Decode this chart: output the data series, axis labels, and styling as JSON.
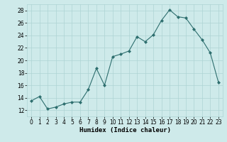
{
  "x_vals": [
    0,
    1,
    2,
    3,
    4,
    5,
    6,
    7,
    8,
    9,
    10,
    11,
    12,
    13,
    14,
    15,
    16,
    17,
    18,
    19,
    20,
    21,
    22,
    23
  ],
  "y_vals": [
    13.5,
    14.2,
    12.2,
    12.5,
    13.0,
    13.3,
    13.3,
    15.3,
    18.7,
    16.0,
    20.6,
    21.0,
    21.5,
    23.8,
    23.0,
    24.1,
    26.4,
    28.1,
    27.0,
    26.8,
    25.0,
    23.3,
    21.2,
    16.5
  ],
  "line_color": "#2d6e6e",
  "marker_color": "#2d6e6e",
  "bg_color": "#ceeaea",
  "grid_color": "#add4d4",
  "xlabel": "Humidex (Indice chaleur)",
  "ylim": [
    11,
    29
  ],
  "xlim": [
    -0.5,
    23.5
  ],
  "yticks": [
    12,
    14,
    16,
    18,
    20,
    22,
    24,
    26,
    28
  ],
  "xticks": [
    0,
    1,
    2,
    3,
    4,
    5,
    6,
    7,
    8,
    9,
    10,
    11,
    12,
    13,
    14,
    15,
    16,
    17,
    18,
    19,
    20,
    21,
    22,
    23
  ],
  "xlabel_fontsize": 6.5,
  "tick_fontsize": 5.5
}
